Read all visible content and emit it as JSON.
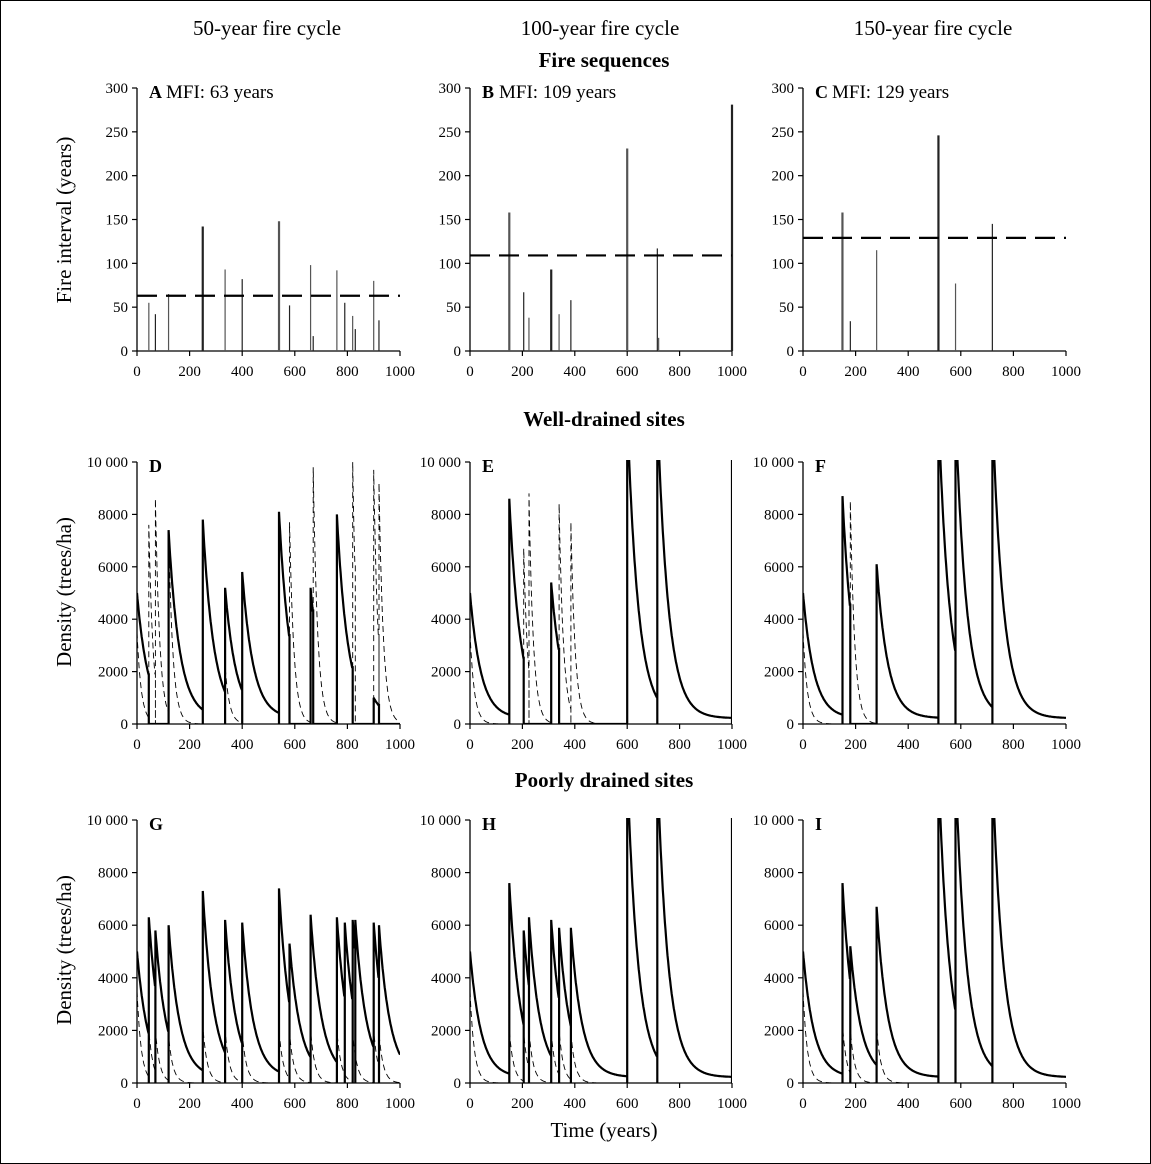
{
  "figure": {
    "column_headers": [
      "50-year fire cycle",
      "100-year fire cycle",
      "150-year fire cycle"
    ],
    "row_headers": [
      "Fire sequences",
      "Well-drained sites",
      "Poorly drained sites"
    ],
    "x_axis_label": "Time (years)",
    "y_axis_labels": [
      "Fire interval (years)",
      "Density  (trees/ha)",
      "Density (trees/ha)"
    ]
  },
  "chart_data": [
    {
      "panel": "A",
      "type": "bar",
      "title": "A",
      "subtitle": "MFI: 63 years",
      "ylabel": "Fire interval (years)",
      "xlim": [
        0,
        1000
      ],
      "ylim": [
        0,
        300
      ],
      "xticks": [
        0,
        200,
        400,
        600,
        800,
        1000
      ],
      "yticks": [
        0,
        50,
        100,
        150,
        200,
        250,
        300
      ],
      "mean_line": 63,
      "x": [
        45,
        70,
        120,
        250,
        335,
        400,
        540,
        580,
        660,
        670,
        760,
        790,
        820,
        830,
        900,
        920
      ],
      "values": [
        55,
        42,
        65,
        142,
        93,
        82,
        148,
        52,
        98,
        17,
        92,
        55,
        40,
        25,
        80,
        35
      ]
    },
    {
      "panel": "B",
      "type": "bar",
      "title": "B",
      "subtitle": "MFI: 109 years",
      "ylabel": "",
      "xlim": [
        0,
        1000
      ],
      "ylim": [
        0,
        300
      ],
      "xticks": [
        0,
        200,
        400,
        600,
        800,
        1000
      ],
      "yticks": [
        0,
        50,
        100,
        150,
        200,
        250,
        300
      ],
      "mean_line": 109,
      "x": [
        150,
        205,
        225,
        310,
        340,
        385,
        600,
        715,
        720,
        1000
      ],
      "values": [
        158,
        67,
        38,
        93,
        42,
        58,
        231,
        117,
        15,
        281
      ]
    },
    {
      "panel": "C",
      "type": "bar",
      "title": "C",
      "subtitle": "MFI: 129 years",
      "ylabel": "",
      "xlim": [
        0,
        1000
      ],
      "ylim": [
        0,
        300
      ],
      "xticks": [
        0,
        200,
        400,
        600,
        800,
        1000
      ],
      "yticks": [
        0,
        50,
        100,
        150,
        200,
        250,
        300
      ],
      "mean_line": 129,
      "x": [
        150,
        180,
        280,
        515,
        580,
        720
      ],
      "values": [
        158,
        34,
        115,
        246,
        77,
        145
      ]
    },
    {
      "panel": "D",
      "type": "line",
      "title": "D",
      "ylabel": "Density  (trees/ha)",
      "xlim": [
        0,
        1000
      ],
      "ylim": [
        0,
        10000
      ],
      "xticks": [
        0,
        200,
        400,
        600,
        800,
        1000
      ],
      "yticks": [
        0,
        2000,
        4000,
        6000,
        8000,
        10000
      ],
      "series": [
        {
          "style": "solid",
          "start": 5000,
          "decay": 0.022,
          "fires": [
            [
              45,
              0
            ],
            [
              70,
              0
            ],
            [
              120,
              7400
            ],
            [
              250,
              7800
            ],
            [
              335,
              5200
            ],
            [
              400,
              5800
            ],
            [
              540,
              8100
            ],
            [
              580,
              0
            ],
            [
              660,
              5200
            ],
            [
              670,
              0
            ],
            [
              760,
              8000
            ],
            [
              820,
              0
            ],
            [
              830,
              0
            ],
            [
              900,
              1000
            ],
            [
              920,
              0
            ]
          ],
          "baseline": 0.65
        },
        {
          "style": "dashed",
          "start": 3500,
          "decay": 0.06,
          "fires": [
            [
              45,
              7600
            ],
            [
              70,
              8600
            ],
            [
              120,
              7400
            ],
            [
              250,
              0
            ],
            [
              335,
              2200
            ],
            [
              400,
              0
            ],
            [
              540,
              0
            ],
            [
              580,
              7700
            ],
            [
              660,
              0
            ],
            [
              670,
              9800
            ],
            [
              760,
              0
            ],
            [
              790,
              0
            ],
            [
              820,
              10000
            ],
            [
              830,
              0
            ],
            [
              900,
              9700
            ],
            [
              920,
              9200
            ]
          ],
          "baseline": 0.0
        }
      ]
    },
    {
      "panel": "E",
      "type": "line",
      "title": "E",
      "ylabel": "",
      "xlim": [
        0,
        1000
      ],
      "ylim": [
        0,
        10000
      ],
      "xticks": [
        0,
        200,
        400,
        600,
        800,
        1000
      ],
      "yticks": [
        0,
        2000,
        4000,
        6000,
        8000,
        10000
      ],
      "series": [
        {
          "style": "solid",
          "start": 5000,
          "decay": 0.022,
          "fires": [
            [
              150,
              8600
            ],
            [
              205,
              0
            ],
            [
              225,
              0
            ],
            [
              310,
              5400
            ],
            [
              340,
              0
            ],
            [
              385,
              0
            ],
            [
              600,
              12000
            ],
            [
              715,
              12000
            ],
            [
              1000,
              12000
            ]
          ],
          "baseline": 0.0
        },
        {
          "style": "dashed",
          "start": 3500,
          "decay": 0.06,
          "fires": [
            [
              150,
              0
            ],
            [
              205,
              6700
            ],
            [
              225,
              8800
            ],
            [
              310,
              0
            ],
            [
              340,
              8400
            ],
            [
              385,
              7700
            ]
          ],
          "baseline": 0.0
        }
      ]
    },
    {
      "panel": "F",
      "type": "line",
      "title": "F",
      "ylabel": "",
      "xlim": [
        0,
        1000
      ],
      "ylim": [
        0,
        10000
      ],
      "xticks": [
        0,
        200,
        400,
        600,
        800,
        1000
      ],
      "yticks": [
        0,
        2000,
        4000,
        6000,
        8000,
        10000
      ],
      "series": [
        {
          "style": "solid",
          "start": 5000,
          "decay": 0.022,
          "fires": [
            [
              150,
              8700
            ],
            [
              180,
              0
            ],
            [
              280,
              6100
            ],
            [
              515,
              12000
            ],
            [
              580,
              12000
            ],
            [
              720,
              12000
            ]
          ],
          "baseline": 0.0
        },
        {
          "style": "dashed",
          "start": 3500,
          "decay": 0.06,
          "fires": [
            [
              150,
              0
            ],
            [
              180,
              8500
            ],
            [
              280,
              0
            ]
          ],
          "baseline": 0.0
        }
      ]
    },
    {
      "panel": "G",
      "type": "line",
      "title": "G",
      "ylabel": "Density (trees/ha)",
      "xlim": [
        0,
        1000
      ],
      "ylim": [
        0,
        10000
      ],
      "xticks": [
        0,
        200,
        400,
        600,
        800,
        1000
      ],
      "yticks": [
        0,
        2000,
        4000,
        6000,
        8000,
        10000
      ],
      "series": [
        {
          "style": "solid",
          "start": 5000,
          "decay": 0.022,
          "fires": [
            [
              45,
              6300
            ],
            [
              70,
              5800
            ],
            [
              120,
              6000
            ],
            [
              250,
              7300
            ],
            [
              335,
              6200
            ],
            [
              400,
              6100
            ],
            [
              540,
              7400
            ],
            [
              580,
              5300
            ],
            [
              660,
              6400
            ],
            [
              760,
              6300
            ],
            [
              790,
              6100
            ],
            [
              820,
              6200
            ],
            [
              830,
              6200
            ],
            [
              900,
              6100
            ],
            [
              920,
              6000
            ]
          ],
          "baseline": 0.0
        },
        {
          "style": "dashed",
          "start": 3500,
          "decay": 0.06,
          "fires": [
            [
              45,
              2000
            ],
            [
              70,
              2000
            ],
            [
              120,
              1800
            ],
            [
              250,
              2200
            ],
            [
              335,
              2000
            ],
            [
              400,
              1900
            ],
            [
              540,
              2000
            ],
            [
              580,
              1900
            ],
            [
              660,
              2000
            ],
            [
              760,
              2000
            ],
            [
              820,
              1900
            ],
            [
              900,
              2000
            ],
            [
              920,
              1900
            ]
          ],
          "baseline": 0.0
        }
      ]
    },
    {
      "panel": "H",
      "type": "line",
      "title": "H",
      "ylabel": "",
      "xlim": [
        0,
        1000
      ],
      "ylim": [
        0,
        10000
      ],
      "xticks": [
        0,
        200,
        400,
        600,
        800,
        1000
      ],
      "yticks": [
        0,
        2000,
        4000,
        6000,
        8000,
        10000
      ],
      "series": [
        {
          "style": "solid",
          "start": 5000,
          "decay": 0.022,
          "fires": [
            [
              150,
              7600
            ],
            [
              205,
              5800
            ],
            [
              225,
              6300
            ],
            [
              310,
              6200
            ],
            [
              340,
              5900
            ],
            [
              385,
              5900
            ],
            [
              600,
              12000
            ],
            [
              715,
              12000
            ],
            [
              1000,
              12000
            ]
          ],
          "baseline": 0.0
        },
        {
          "style": "dashed",
          "start": 3500,
          "decay": 0.06,
          "fires": [
            [
              150,
              2000
            ],
            [
              205,
              1900
            ],
            [
              225,
              2000
            ],
            [
              310,
              1900
            ],
            [
              340,
              2000
            ],
            [
              385,
              1900
            ]
          ],
          "baseline": 0.0
        }
      ]
    },
    {
      "panel": "I",
      "type": "line",
      "title": "I",
      "ylabel": "",
      "xlim": [
        0,
        1000
      ],
      "ylim": [
        0,
        10000
      ],
      "xticks": [
        0,
        200,
        400,
        600,
        800,
        1000
      ],
      "yticks": [
        0,
        2000,
        4000,
        6000,
        8000,
        10000
      ],
      "series": [
        {
          "style": "solid",
          "start": 5000,
          "decay": 0.022,
          "fires": [
            [
              150,
              7600
            ],
            [
              180,
              5200
            ],
            [
              280,
              6700
            ],
            [
              515,
              12000
            ],
            [
              580,
              12000
            ],
            [
              720,
              12000
            ]
          ],
          "baseline": 0.0
        },
        {
          "style": "dashed",
          "start": 3500,
          "decay": 0.06,
          "fires": [
            [
              150,
              2200
            ],
            [
              180,
              2000
            ],
            [
              280,
              2100
            ]
          ],
          "baseline": 0.0
        }
      ]
    }
  ]
}
